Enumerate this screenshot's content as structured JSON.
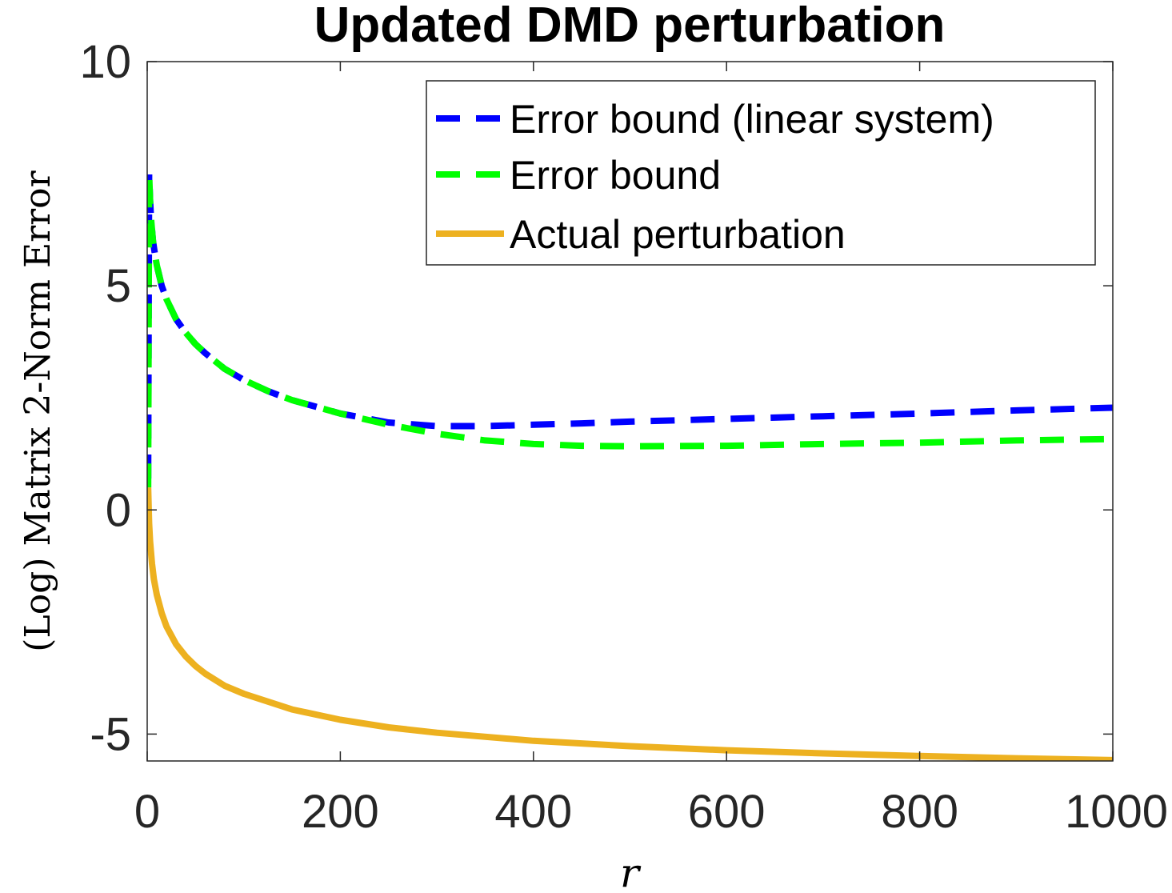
{
  "chart_data": {
    "type": "line",
    "title": "Updated DMD perturbation",
    "xlabel": "r",
    "ylabel": "(Log) Matrix 2-Norm Error",
    "xlim": [
      0,
      1000
    ],
    "ylim": [
      -5.6,
      10
    ],
    "xticks": [
      0,
      200,
      400,
      600,
      800,
      1000
    ],
    "xtick_labels": [
      "0",
      "200",
      "400",
      "600",
      "800",
      "1000"
    ],
    "yticks": [
      -5,
      0,
      5,
      10
    ],
    "ytick_labels": [
      "-5",
      "0",
      "5",
      "10"
    ],
    "grid": false,
    "legend_position": "top-right",
    "series": [
      {
        "name": "Error bound (linear system)",
        "color": "#0000ff",
        "style": "dashed",
        "x": [
          1,
          2,
          3,
          4,
          6,
          8,
          10,
          15,
          20,
          30,
          40,
          50,
          60,
          80,
          100,
          125,
          150,
          175,
          200,
          250,
          300,
          350,
          400,
          450,
          500,
          600,
          700,
          800,
          900,
          1000
        ],
        "y": [
          0.7,
          7.5,
          6.9,
          6.5,
          6.0,
          5.7,
          5.45,
          5.0,
          4.7,
          4.25,
          3.95,
          3.7,
          3.5,
          3.15,
          2.9,
          2.65,
          2.45,
          2.3,
          2.15,
          1.95,
          1.87,
          1.87,
          1.9,
          1.93,
          1.97,
          2.03,
          2.09,
          2.15,
          2.22,
          2.28
        ]
      },
      {
        "name": "Error bound",
        "color": "#00ff00",
        "style": "dashed",
        "x": [
          1,
          2,
          3,
          4,
          6,
          8,
          10,
          15,
          20,
          30,
          40,
          50,
          60,
          80,
          100,
          125,
          150,
          175,
          200,
          250,
          300,
          350,
          400,
          450,
          500,
          600,
          700,
          800,
          900,
          1000
        ],
        "y": [
          0.5,
          7.5,
          6.9,
          6.5,
          6.0,
          5.7,
          5.45,
          5.0,
          4.7,
          4.25,
          3.95,
          3.7,
          3.5,
          3.15,
          2.9,
          2.65,
          2.45,
          2.3,
          2.15,
          1.9,
          1.7,
          1.55,
          1.47,
          1.43,
          1.42,
          1.43,
          1.47,
          1.5,
          1.55,
          1.58
        ]
      },
      {
        "name": "Actual perturbation",
        "color": "#edb120",
        "style": "solid",
        "x": [
          1,
          2,
          3,
          5,
          7,
          10,
          15,
          20,
          30,
          40,
          50,
          60,
          80,
          100,
          150,
          200,
          250,
          300,
          400,
          500,
          600,
          700,
          800,
          900,
          1000
        ],
        "y": [
          0.5,
          -0.3,
          -0.7,
          -1.2,
          -1.55,
          -1.9,
          -2.3,
          -2.6,
          -3.0,
          -3.27,
          -3.48,
          -3.65,
          -3.92,
          -4.1,
          -4.45,
          -4.68,
          -4.85,
          -4.97,
          -5.15,
          -5.27,
          -5.36,
          -5.43,
          -5.49,
          -5.54,
          -5.58
        ]
      }
    ]
  }
}
